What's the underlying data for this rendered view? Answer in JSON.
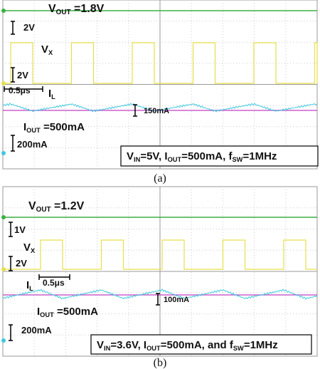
{
  "panels": [
    {
      "vout_label": [
        "V",
        "OUT",
        " =1.8V"
      ],
      "scale_vout": "2V",
      "vx_label": [
        "V",
        "X"
      ],
      "scale_vx": "2V",
      "time_scale": "0.5μs",
      "il_label": [
        "I",
        "L"
      ],
      "ripple": "150mA",
      "iout_label": [
        "I",
        "OUT",
        " =500mA"
      ],
      "scale_il": "200mA",
      "conditions": [
        "V",
        "IN",
        "=5V, I",
        "OUT",
        "=500mA, f",
        "SW",
        "=1MHz"
      ],
      "caption": "(a)"
    },
    {
      "vout_label": [
        "V",
        "OUT",
        " =1.2V"
      ],
      "scale_vout": "1V",
      "vx_label": [
        "V",
        "X"
      ],
      "scale_vx": "2V",
      "time_scale": "0.5μs",
      "il_label": [
        "I",
        "L"
      ],
      "ripple": "100mA",
      "iout_label": [
        "I",
        "OUT",
        " =500mA"
      ],
      "scale_il": "200mA",
      "conditions": [
        "V",
        "IN",
        "=3.6V, I",
        "OUT",
        "=500mA, and f",
        "SW",
        "=1MHz"
      ],
      "caption": "(b)"
    }
  ]
}
